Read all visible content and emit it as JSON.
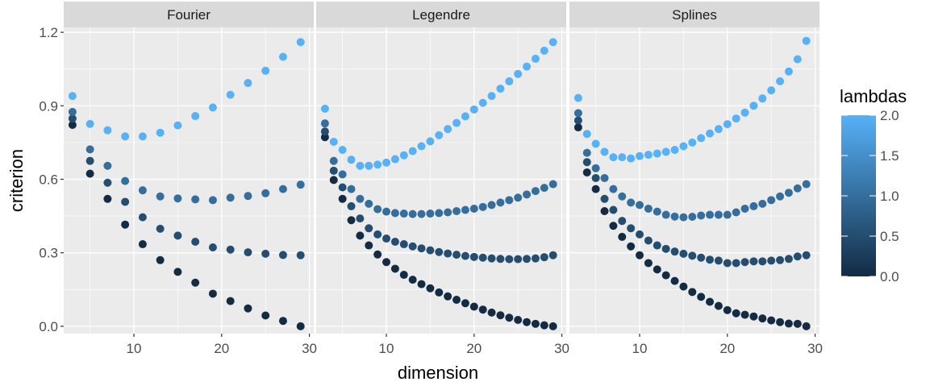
{
  "chart_data": {
    "type": "scatter",
    "xlabel": "dimension",
    "ylabel": "criterion",
    "xlim": [
      2,
      30.5
    ],
    "ylim": [
      -0.03,
      1.22
    ],
    "x_ticks": [
      10,
      20,
      30
    ],
    "x_tick_labels": [
      "10",
      "20",
      "30"
    ],
    "y_ticks": [
      0.0,
      0.3,
      0.6,
      0.9,
      1.2
    ],
    "y_tick_labels": [
      "0.0",
      "0.3",
      "0.6",
      "0.9",
      "1.2"
    ],
    "grid": true,
    "legend": {
      "title": "lambdas",
      "type": "colorbar",
      "placement": "right",
      "min": 0.0,
      "max": 2.0,
      "ticks": [
        0.0,
        0.5,
        1.0,
        1.5,
        2.0
      ],
      "tick_labels": [
        "0.0",
        "0.5",
        "1.0",
        "1.5",
        "2.0"
      ],
      "low_color": "#132B43",
      "high_color": "#56B1F7"
    },
    "panels": [
      {
        "title": "Fourier",
        "x": [
          3,
          5,
          7,
          9,
          11,
          13,
          15,
          17,
          19,
          21,
          23,
          25,
          27,
          29
        ],
        "series": [
          {
            "lambda": 0.0,
            "values": [
              0.822,
              0.623,
              0.52,
              0.415,
              0.335,
              0.27,
              0.222,
              0.178,
              0.133,
              0.103,
              0.073,
              0.044,
              0.022,
              0.0
            ]
          },
          {
            "lambda": 0.5,
            "values": [
              0.848,
              0.675,
              0.586,
              0.508,
              0.445,
              0.398,
              0.37,
              0.345,
              0.322,
              0.313,
              0.302,
              0.296,
              0.291,
              0.29
            ]
          },
          {
            "lambda": 1.0,
            "values": [
              0.875,
              0.722,
              0.655,
              0.593,
              0.555,
              0.53,
              0.522,
              0.518,
              0.515,
              0.525,
              0.532,
              0.543,
              0.56,
              0.578
            ]
          },
          {
            "lambda": 2.0,
            "values": [
              0.94,
              0.826,
              0.8,
              0.775,
              0.775,
              0.79,
              0.82,
              0.858,
              0.893,
              0.945,
              0.993,
              1.043,
              1.1,
              1.16
            ]
          }
        ]
      },
      {
        "title": "Legendre",
        "x": [
          3,
          4,
          5,
          6,
          7,
          8,
          9,
          10,
          11,
          12,
          13,
          14,
          15,
          16,
          17,
          18,
          19,
          20,
          21,
          22,
          23,
          24,
          25,
          26,
          27,
          28,
          29
        ],
        "series": [
          {
            "lambda": 0.0,
            "values": [
              0.772,
              0.597,
              0.52,
              0.433,
              0.37,
              0.33,
              0.293,
              0.262,
              0.235,
              0.21,
              0.19,
              0.172,
              0.155,
              0.138,
              0.122,
              0.108,
              0.094,
              0.08,
              0.068,
              0.056,
              0.045,
              0.035,
              0.026,
              0.017,
              0.01,
              0.004,
              0.0
            ]
          },
          {
            "lambda": 0.5,
            "values": [
              0.795,
              0.635,
              0.567,
              0.49,
              0.44,
              0.4,
              0.375,
              0.358,
              0.345,
              0.335,
              0.326,
              0.318,
              0.31,
              0.303,
              0.297,
              0.292,
              0.287,
              0.283,
              0.28,
              0.277,
              0.275,
              0.274,
              0.274,
              0.275,
              0.277,
              0.282,
              0.29
            ]
          },
          {
            "lambda": 1.0,
            "values": [
              0.828,
              0.675,
              0.62,
              0.56,
              0.52,
              0.5,
              0.478,
              0.468,
              0.462,
              0.46,
              0.458,
              0.458,
              0.46,
              0.462,
              0.465,
              0.47,
              0.475,
              0.48,
              0.487,
              0.495,
              0.505,
              0.515,
              0.525,
              0.538,
              0.552,
              0.565,
              0.58
            ]
          },
          {
            "lambda": 2.0,
            "values": [
              0.888,
              0.753,
              0.72,
              0.68,
              0.655,
              0.655,
              0.66,
              0.668,
              0.682,
              0.698,
              0.715,
              0.735,
              0.755,
              0.78,
              0.805,
              0.83,
              0.857,
              0.885,
              0.912,
              0.94,
              0.97,
              1.0,
              1.03,
              1.06,
              1.092,
              1.125,
              1.16
            ]
          }
        ]
      },
      {
        "title": "Splines",
        "x": [
          3,
          4,
          5,
          6,
          7,
          8,
          9,
          10,
          11,
          12,
          13,
          14,
          15,
          16,
          17,
          18,
          19,
          20,
          21,
          22,
          23,
          24,
          25,
          26,
          27,
          28,
          29
        ],
        "series": [
          {
            "lambda": 0.0,
            "values": [
              0.812,
              0.628,
              0.56,
              0.47,
              0.41,
              0.365,
              0.326,
              0.29,
              0.258,
              0.232,
              0.208,
              0.185,
              0.162,
              0.14,
              0.12,
              0.1,
              0.083,
              0.066,
              0.053,
              0.047,
              0.04,
              0.032,
              0.024,
              0.017,
              0.011,
              0.01,
              0.0
            ]
          },
          {
            "lambda": 0.5,
            "values": [
              0.84,
              0.67,
              0.605,
              0.52,
              0.475,
              0.43,
              0.4,
              0.375,
              0.35,
              0.33,
              0.316,
              0.305,
              0.296,
              0.288,
              0.28,
              0.272,
              0.268,
              0.258,
              0.258,
              0.262,
              0.265,
              0.265,
              0.268,
              0.27,
              0.275,
              0.285,
              0.29
            ]
          },
          {
            "lambda": 1.0,
            "values": [
              0.87,
              0.708,
              0.645,
              0.605,
              0.56,
              0.53,
              0.505,
              0.495,
              0.48,
              0.468,
              0.455,
              0.448,
              0.445,
              0.447,
              0.452,
              0.455,
              0.455,
              0.455,
              0.465,
              0.48,
              0.49,
              0.5,
              0.515,
              0.53,
              0.545,
              0.563,
              0.58
            ]
          },
          {
            "lambda": 2.0,
            "values": [
              0.932,
              0.785,
              0.745,
              0.712,
              0.69,
              0.69,
              0.685,
              0.695,
              0.7,
              0.705,
              0.712,
              0.72,
              0.735,
              0.75,
              0.768,
              0.787,
              0.805,
              0.825,
              0.848,
              0.872,
              0.9,
              0.93,
              0.963,
              1.0,
              1.04,
              1.09,
              1.165
            ]
          }
        ]
      }
    ]
  }
}
